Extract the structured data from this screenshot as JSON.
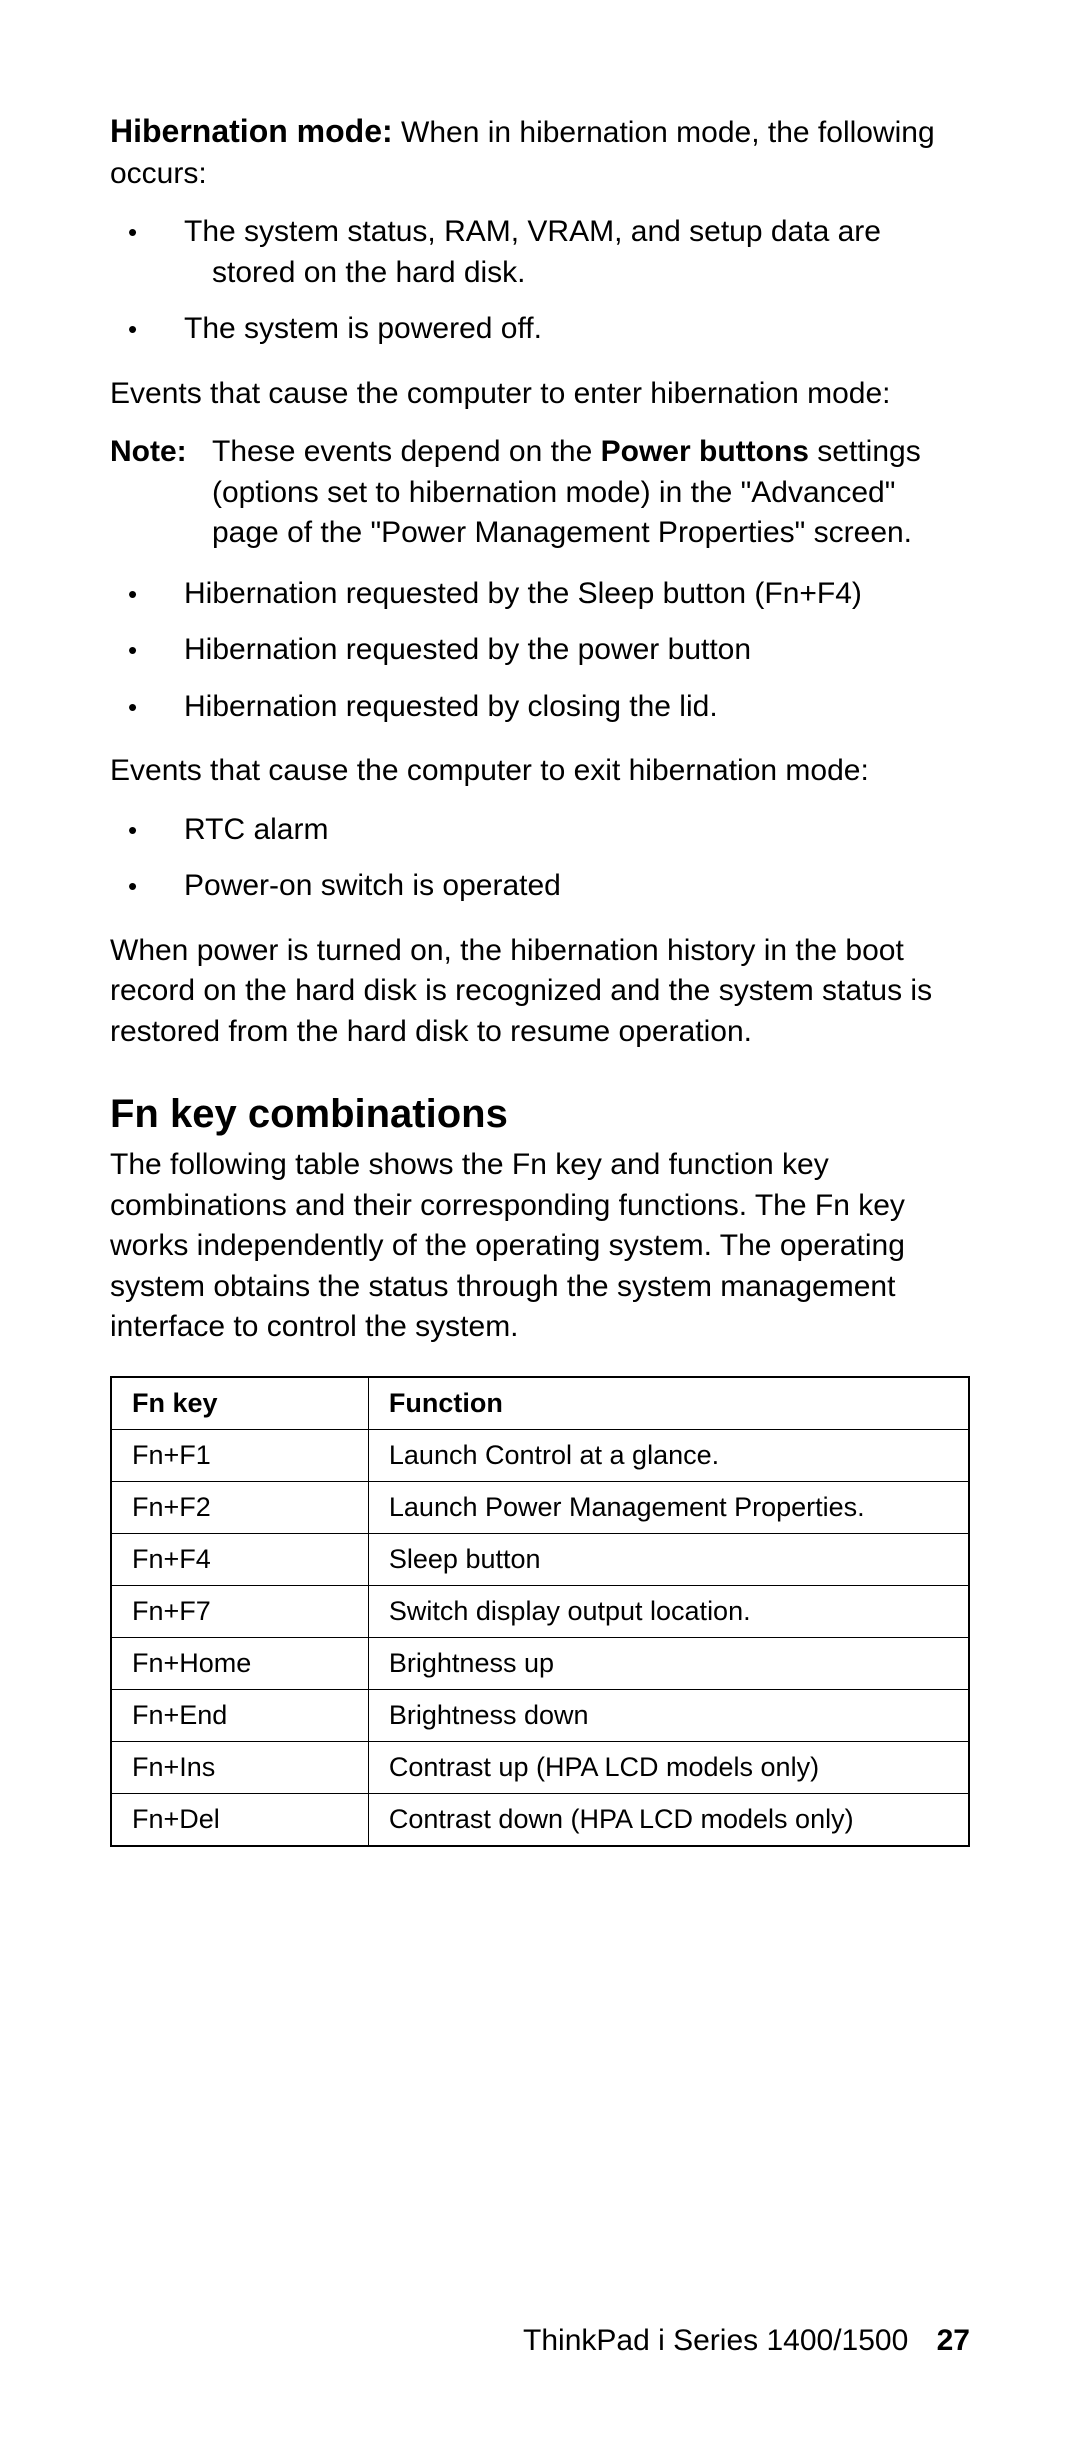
{
  "colors": {
    "text": "#000000",
    "background": "#ffffff",
    "table_border": "#000000"
  },
  "typography": {
    "body_font_size_pt": 22,
    "heading_font_size_pt": 30,
    "table_font_size_pt": 20,
    "font_family": "Arial, Helvetica, sans-serif"
  },
  "section1": {
    "run_in": "Hibernation mode:",
    "intro_tail": "  When in hibernation mode, the following occurs:",
    "bullets_a": [
      "The system status, RAM, VRAM, and setup data are stored on the hard disk.",
      "The system is powered off."
    ],
    "enter_events_intro": "Events that cause the computer to enter hibernation mode:",
    "note_label": "Note:",
    "note_body_pre": "These events depend on the ",
    "note_body_bold": "Power buttons",
    "note_body_post": " settings (options set to hibernation mode) in the \"Advanced\" page of the \"Power Management Properties\" screen.",
    "bullets_b": [
      "Hibernation requested by the Sleep button (Fn+F4)",
      "Hibernation requested by the power button",
      "Hibernation requested by closing the lid."
    ],
    "exit_events_intro": "Events that cause the computer to exit hibernation mode:",
    "bullets_c": [
      "RTC alarm",
      "Power-on switch is operated"
    ],
    "closing_para": "When power is turned on, the hibernation history in the boot record on the hard disk is recognized and the system status is restored from the hard disk to resume operation."
  },
  "section2": {
    "heading": "Fn key combinations",
    "intro": "The following table shows the Fn key and function key combinations and their corresponding functions. The Fn key works independently of the operating system. The operating system obtains the status through the system management interface to control the system.",
    "table": {
      "type": "table",
      "col_widths_pct": [
        30,
        70
      ],
      "header": [
        "Fn key",
        "Function"
      ],
      "rows": [
        [
          "Fn+F1",
          "Launch Control at a glance."
        ],
        [
          "Fn+F2",
          "Launch Power Management Properties."
        ],
        [
          "Fn+F4",
          "Sleep button"
        ],
        [
          "Fn+F7",
          "Switch display output location."
        ],
        [
          "Fn+Home",
          "Brightness up"
        ],
        [
          "Fn+End",
          "Brightness down"
        ],
        [
          "Fn+Ins",
          "Contrast up (HPA LCD models only)"
        ],
        [
          "Fn+Del",
          "Contrast down (HPA LCD models only)"
        ]
      ]
    }
  },
  "footer": {
    "left": "ThinkPad i Series 1400/1500",
    "page_number": "27"
  }
}
